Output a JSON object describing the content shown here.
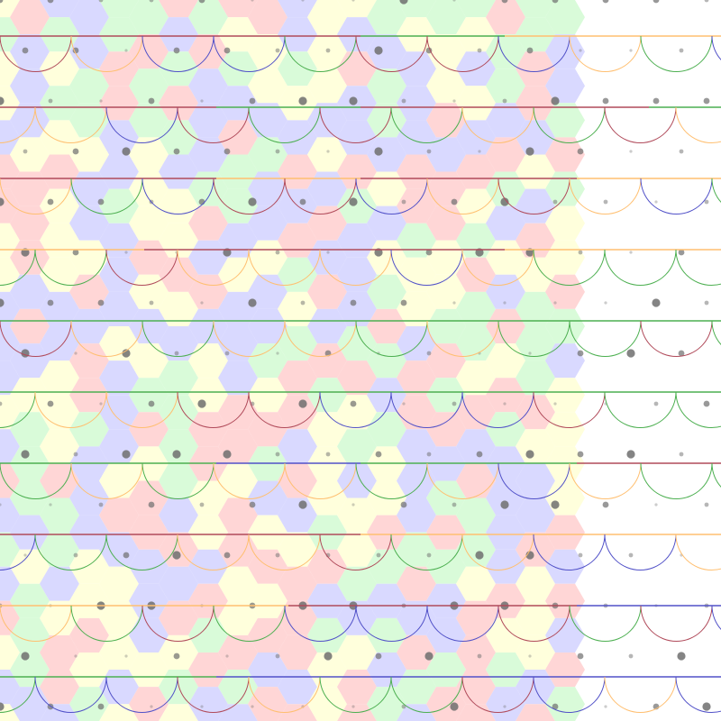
{
  "pattern": {
    "background_color": "#ffffff",
    "hex_palette": [
      "#ffd6d6",
      "#d9d9ff",
      "#d9fbd9",
      "#ffffdc"
    ],
    "line_palette": [
      "#4caf50",
      "#5151c8",
      "#b04a5a",
      "#ffbf70"
    ],
    "dot_color": "#6e6e6e",
    "tiled_region": "left",
    "band_count": 10,
    "arcs_per_band": 10
  }
}
